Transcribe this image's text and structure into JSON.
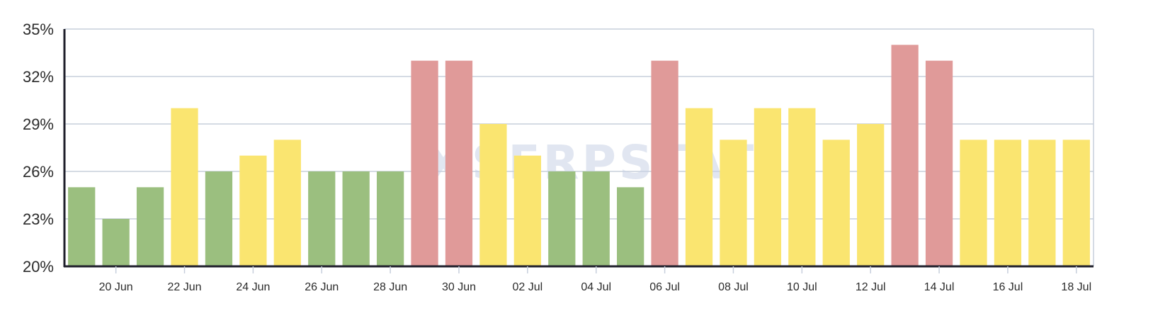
{
  "watermark": {
    "text": "SERPSTAT",
    "icon": "serpstat-logo-icon"
  },
  "colors": {
    "green": "#9bbf7f",
    "yellow": "#fae570",
    "red": "#e09a99",
    "grid": "#c7cfdc",
    "axis": "#1f1f2b"
  },
  "chart_data": {
    "type": "bar",
    "title": "",
    "xlabel": "",
    "ylabel": "",
    "ylim": [
      20,
      35
    ],
    "y_ticks": [
      "20%",
      "23%",
      "26%",
      "29%",
      "32%",
      "35%"
    ],
    "y_tick_values": [
      20,
      23,
      26,
      29,
      32,
      35
    ],
    "grid": true,
    "categories": [
      "19 Jun",
      "20 Jun",
      "21 Jun",
      "22 Jun",
      "23 Jun",
      "24 Jun",
      "25 Jun",
      "26 Jun",
      "27 Jun",
      "28 Jun",
      "29 Jun",
      "30 Jun",
      "01 Jul",
      "02 Jul",
      "03 Jul",
      "04 Jul",
      "05 Jul",
      "06 Jul",
      "07 Jul",
      "08 Jul",
      "09 Jul",
      "10 Jul",
      "11 Jul",
      "12 Jul",
      "13 Jul",
      "14 Jul",
      "15 Jul",
      "16 Jul",
      "17 Jul",
      "18 Jul"
    ],
    "x_tick_labels": [
      "20 Jun",
      "22 Jun",
      "24 Jun",
      "26 Jun",
      "28 Jun",
      "30 Jun",
      "02 Jul",
      "04 Jul",
      "06 Jul",
      "08 Jul",
      "10 Jul",
      "12 Jul",
      "14 Jul",
      "16 Jul",
      "18 Jul"
    ],
    "values": [
      25,
      23,
      25,
      30,
      26,
      27,
      28,
      26,
      26,
      26,
      33,
      33,
      29,
      27,
      26,
      26,
      25,
      33,
      30,
      28,
      30,
      30,
      28,
      29,
      34,
      33,
      28,
      28,
      28,
      28
    ],
    "bar_colors": [
      "green",
      "green",
      "green",
      "yellow",
      "green",
      "yellow",
      "yellow",
      "green",
      "green",
      "green",
      "red",
      "red",
      "yellow",
      "yellow",
      "green",
      "green",
      "green",
      "red",
      "yellow",
      "yellow",
      "yellow",
      "yellow",
      "yellow",
      "yellow",
      "red",
      "red",
      "yellow",
      "yellow",
      "yellow",
      "yellow"
    ]
  }
}
